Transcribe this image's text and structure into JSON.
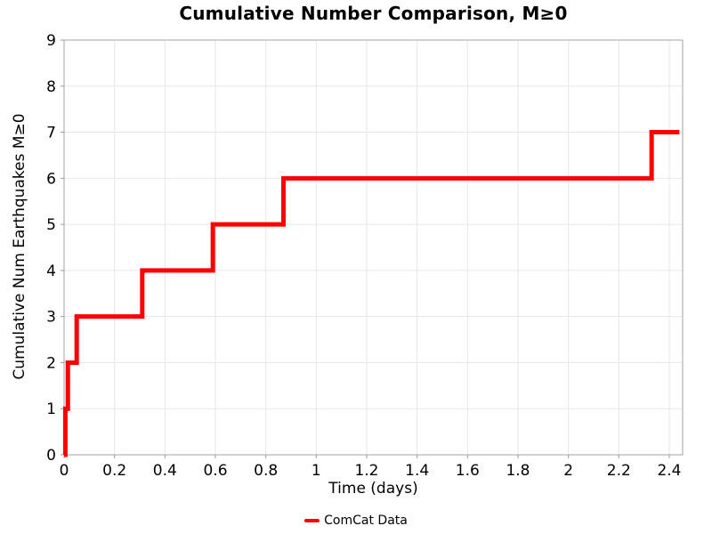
{
  "chart_data": {
    "type": "line",
    "subtype": "step-post",
    "title": "Cumulative Number Comparison, M≥0",
    "xlabel": "Time (days)",
    "ylabel": "Cumulative Num Earthquakes M≥0",
    "xlim": [
      0,
      2.453
    ],
    "ylim": [
      0,
      9
    ],
    "xticks": [
      0,
      0.2,
      0.4,
      0.6,
      0.8,
      1,
      1.2,
      1.4,
      1.6,
      1.8,
      2,
      2.2,
      2.4
    ],
    "xtick_labels": [
      "0",
      "0.2",
      "0.4",
      "0.6",
      "0.8",
      "1",
      "1.2",
      "1.4",
      "1.6",
      "1.8",
      "2",
      "2.2",
      "2.4"
    ],
    "yticks": [
      0,
      1,
      2,
      3,
      4,
      5,
      6,
      7,
      8,
      9
    ],
    "ytick_labels": [
      "0",
      "1",
      "2",
      "3",
      "4",
      "5",
      "6",
      "7",
      "8",
      "9"
    ],
    "grid": true,
    "colors": {
      "series": "#ff0000",
      "grid": "#e7e7e7",
      "border": "#a3a3a3",
      "tick": "#999999",
      "text": "#000000"
    },
    "legend": {
      "position": "bottom-center",
      "entries": [
        {
          "label": "ComCat Data",
          "color": "#ff0000"
        }
      ]
    },
    "series": [
      {
        "name": "ComCat Data",
        "color": "#ff0000",
        "line_width": 5,
        "step_x": [
          0,
          0.005,
          0.015,
          0.05,
          0.31,
          0.59,
          0.87,
          2.33
        ],
        "step_y": [
          0,
          1,
          2,
          3,
          4,
          5,
          6,
          7
        ],
        "x_end": 2.44
      }
    ]
  }
}
